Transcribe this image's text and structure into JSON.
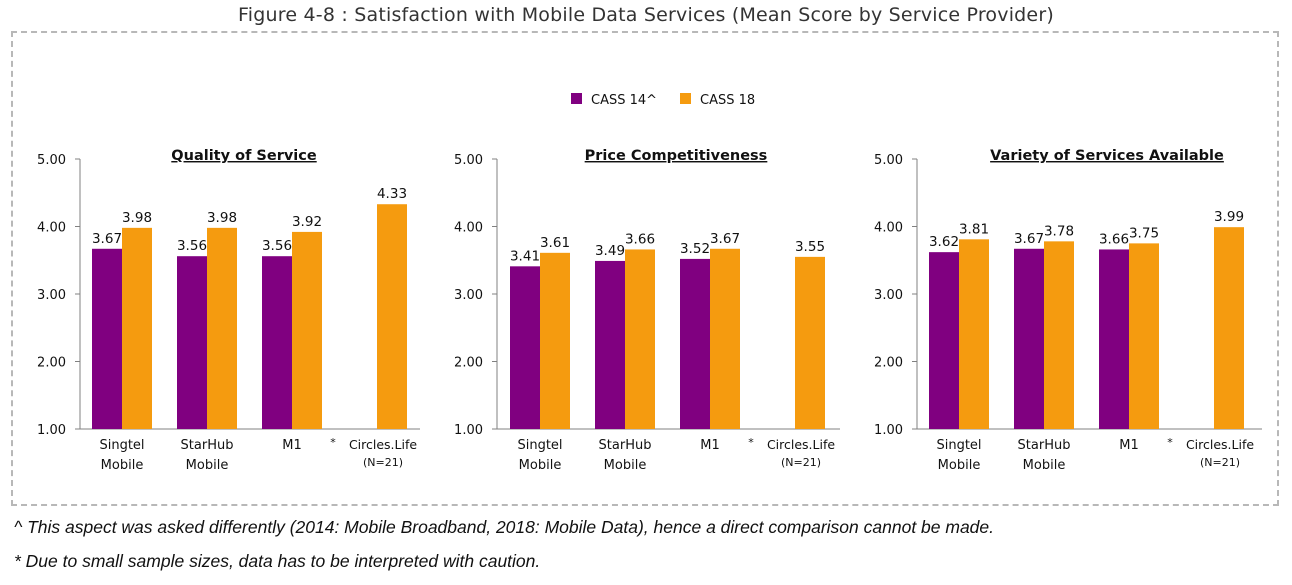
{
  "figure_title": "Figure 4-8 : Satisfaction with Mobile Data Services (Mean Score by Service Provider)",
  "legend": [
    {
      "label": "CASS 14^",
      "color": "#800080"
    },
    {
      "label": "CASS 18",
      "color": "#F59B0F"
    }
  ],
  "footnotes": [
    "^ This aspect was asked differently (2014: Mobile Broadband, 2018: Mobile Data), hence a direct comparison cannot be made.",
    "* Due to small sample sizes, data has to be interpreted with caution."
  ],
  "chart_data": [
    {
      "type": "bar",
      "title": "Quality of Service",
      "categories": [
        {
          "lines": [
            "Singtel",
            "Mobile"
          ],
          "marker": ""
        },
        {
          "lines": [
            "StarHub",
            "Mobile"
          ],
          "marker": ""
        },
        {
          "lines": [
            "M1"
          ],
          "marker": ""
        },
        {
          "lines": [
            "Circles.Life",
            "(N=21)"
          ],
          "marker": "*"
        }
      ],
      "series": [
        {
          "name": "CASS 14^",
          "color": "#800080",
          "values": [
            3.67,
            3.56,
            3.56,
            null
          ],
          "labels": [
            "3.67",
            "3.56",
            "3.56",
            ""
          ]
        },
        {
          "name": "CASS 18",
          "color": "#F59B0F",
          "values": [
            3.98,
            3.98,
            3.92,
            4.33
          ],
          "labels": [
            "3.98",
            "3.98",
            "3.92",
            "4.33"
          ]
        }
      ],
      "ylim": [
        1.0,
        5.0
      ],
      "yticks": [
        "1.00",
        "2.00",
        "3.00",
        "4.00",
        "5.00"
      ],
      "grid": false
    },
    {
      "type": "bar",
      "title": "Price Competitiveness",
      "categories": [
        {
          "lines": [
            "Singtel",
            "Mobile"
          ],
          "marker": ""
        },
        {
          "lines": [
            "StarHub",
            "Mobile"
          ],
          "marker": ""
        },
        {
          "lines": [
            "M1"
          ],
          "marker": ""
        },
        {
          "lines": [
            "Circles.Life",
            "(N=21)"
          ],
          "marker": "*"
        }
      ],
      "series": [
        {
          "name": "CASS 14^",
          "color": "#800080",
          "values": [
            3.41,
            3.49,
            3.52,
            null
          ],
          "labels": [
            "3.41",
            "3.49",
            "3.52",
            ""
          ]
        },
        {
          "name": "CASS 18",
          "color": "#F59B0F",
          "values": [
            3.61,
            3.66,
            3.67,
            3.55
          ],
          "labels": [
            "3.61",
            "3.66",
            "3.67",
            "3.55"
          ]
        }
      ],
      "ylim": [
        1.0,
        5.0
      ],
      "yticks": [
        "1.00",
        "2.00",
        "3.00",
        "4.00",
        "5.00"
      ],
      "grid": false
    },
    {
      "type": "bar",
      "title": "Variety of Services Available",
      "categories": [
        {
          "lines": [
            "Singtel",
            "Mobile"
          ],
          "marker": ""
        },
        {
          "lines": [
            "StarHub",
            "Mobile"
          ],
          "marker": ""
        },
        {
          "lines": [
            "M1"
          ],
          "marker": ""
        },
        {
          "lines": [
            "Circles.Life",
            "(N=21)"
          ],
          "marker": "*"
        }
      ],
      "series": [
        {
          "name": "CASS 14^",
          "color": "#800080",
          "values": [
            3.62,
            3.67,
            3.66,
            null
          ],
          "labels": [
            "3.62",
            "3.67",
            "3.66",
            ""
          ]
        },
        {
          "name": "CASS 18",
          "color": "#F59B0F",
          "values": [
            3.81,
            3.78,
            3.75,
            3.99
          ],
          "labels": [
            "3.81",
            "3.78",
            "3.75",
            "3.99"
          ]
        }
      ],
      "ylim": [
        1.0,
        5.0
      ],
      "yticks": [
        "1.00",
        "2.00",
        "3.00",
        "4.00",
        "5.00"
      ],
      "grid": false
    }
  ]
}
